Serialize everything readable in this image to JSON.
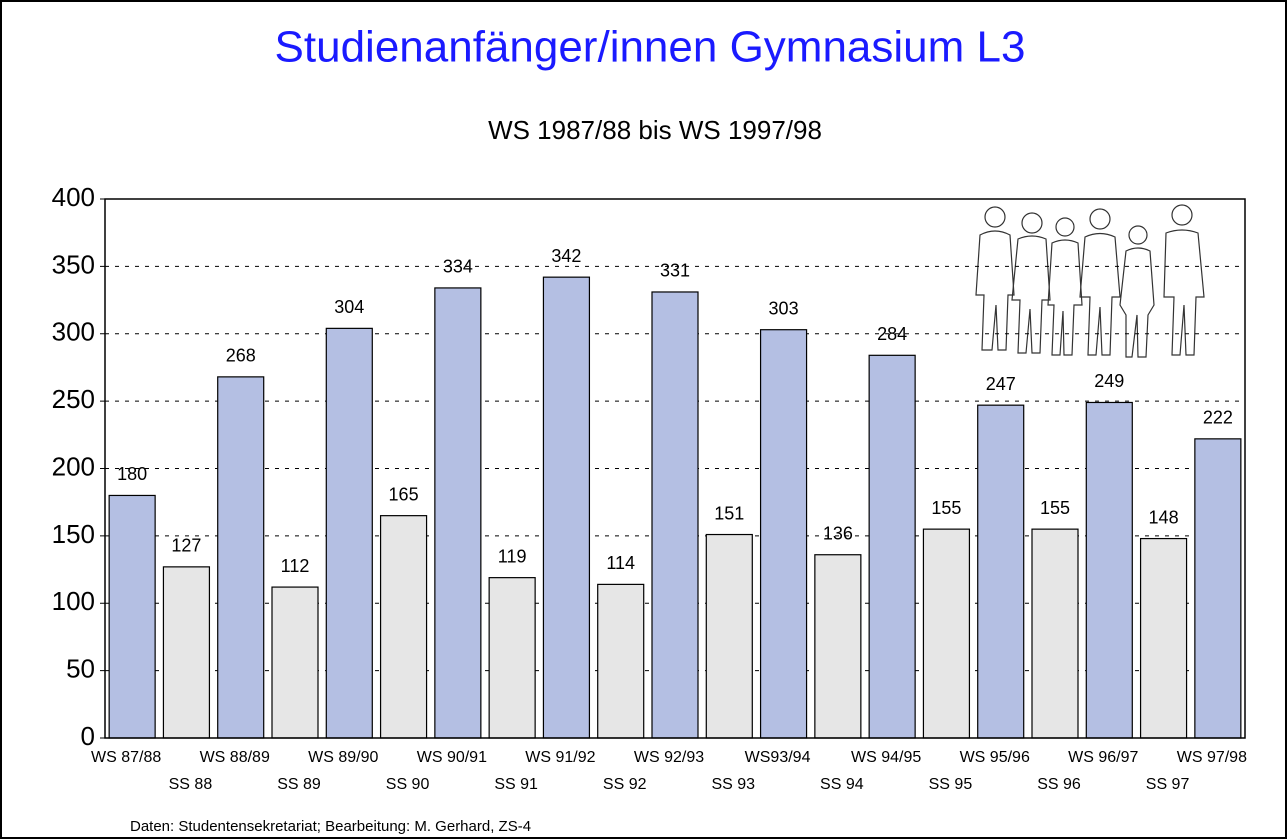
{
  "chart_data": {
    "type": "bar",
    "title": "Studienanfänger/innen Gymnasium L3",
    "subtitle": "WS 1987/88 bis WS 1997/98",
    "footnote": "Daten: Studentensekretariat;  Bearbeitung: M. Gerhard, ZS-4",
    "categories": [
      "WS 87/88",
      "SS 88",
      "WS 88/89",
      "SS 89",
      "WS 89/90",
      "SS 90",
      "WS 90/91",
      "SS 91",
      "WS 91/92",
      "SS 92",
      "WS 92/93",
      "SS 93",
      "WS93/94",
      "SS 94",
      "WS 94/95",
      "SS 95",
      "WS 95/96",
      "SS 96",
      "WS 96/97",
      "SS 97",
      "WS 97/98"
    ],
    "values": [
      180,
      127,
      268,
      112,
      304,
      165,
      334,
      119,
      342,
      114,
      331,
      151,
      303,
      136,
      284,
      155,
      247,
      155,
      249,
      148,
      222
    ],
    "colors": [
      "#b4bfe3",
      "#e6e6e6",
      "#b4bfe3",
      "#e6e6e6",
      "#b4bfe3",
      "#e6e6e6",
      "#b4bfe3",
      "#e6e6e6",
      "#b4bfe3",
      "#e6e6e6",
      "#b4bfe3",
      "#e6e6e6",
      "#b4bfe3",
      "#e6e6e6",
      "#b4bfe3",
      "#e6e6e6",
      "#b4bfe3",
      "#e6e6e6",
      "#b4bfe3",
      "#e6e6e6",
      "#b4bfe3"
    ],
    "title_color": "#1a1aff",
    "ylim": [
      0,
      400
    ],
    "yticks": [
      0,
      50,
      100,
      150,
      200,
      250,
      300,
      350,
      400
    ],
    "grid": true
  }
}
